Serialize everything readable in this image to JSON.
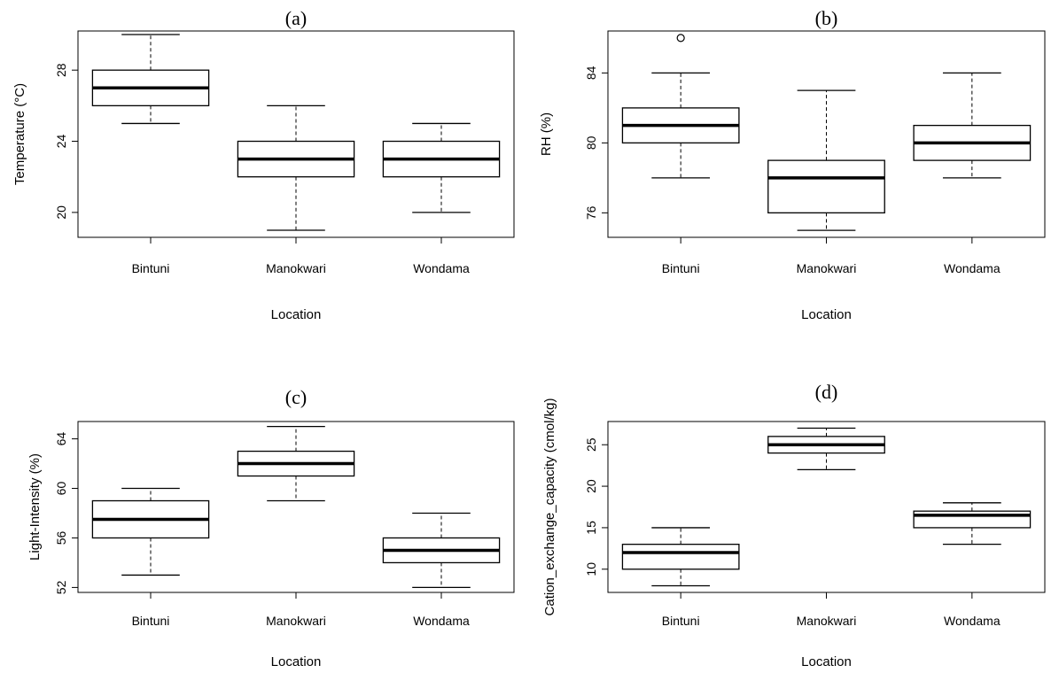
{
  "chart_data": [
    {
      "type": "box",
      "title": "(a)",
      "xlabel": "Location",
      "ylabel": "Temperature (°C)",
      "ylim": [
        18.6,
        30.2
      ],
      "yticks": [
        20,
        24,
        28
      ],
      "yticklabels": [
        "20",
        "24",
        "28"
      ],
      "categories": [
        "Bintuni",
        "Manokwari",
        "Wondama"
      ],
      "boxes": [
        {
          "whisker_low": 25,
          "q1": 26,
          "median": 27,
          "q3": 28,
          "whisker_high": 30,
          "outliers": []
        },
        {
          "whisker_low": 19,
          "q1": 22,
          "median": 23,
          "q3": 24,
          "whisker_high": 26,
          "outliers": []
        },
        {
          "whisker_low": 20,
          "q1": 22,
          "median": 23,
          "q3": 24,
          "whisker_high": 25,
          "outliers": []
        }
      ]
    },
    {
      "type": "box",
      "title": "(b)",
      "xlabel": "Location",
      "ylabel": "RH (%)",
      "ylim": [
        74.6,
        86.4
      ],
      "yticks": [
        76,
        80,
        84
      ],
      "yticklabels": [
        "76",
        "80",
        "84"
      ],
      "categories": [
        "Bintuni",
        "Manokwari",
        "Wondama"
      ],
      "boxes": [
        {
          "whisker_low": 78,
          "q1": 80,
          "median": 81,
          "q3": 82,
          "whisker_high": 84,
          "outliers": [
            86
          ]
        },
        {
          "whisker_low": 75,
          "q1": 76,
          "median": 78,
          "q3": 79,
          "whisker_high": 83,
          "outliers": []
        },
        {
          "whisker_low": 78,
          "q1": 79,
          "median": 80,
          "q3": 81,
          "whisker_high": 84,
          "outliers": []
        }
      ]
    },
    {
      "type": "box",
      "title": "(c)",
      "xlabel": "Location",
      "ylabel": "Light-Intensity (%)",
      "ylim": [
        51.6,
        65.4
      ],
      "yticks": [
        52,
        56,
        60,
        64
      ],
      "yticklabels": [
        "52",
        "56",
        "60",
        "64"
      ],
      "categories": [
        "Bintuni",
        "Manokwari",
        "Wondama"
      ],
      "boxes": [
        {
          "whisker_low": 53,
          "q1": 56,
          "median": 57.5,
          "q3": 59,
          "whisker_high": 60,
          "outliers": []
        },
        {
          "whisker_low": 59,
          "q1": 61,
          "median": 62,
          "q3": 63,
          "whisker_high": 65,
          "outliers": []
        },
        {
          "whisker_low": 52,
          "q1": 54,
          "median": 55,
          "q3": 56,
          "whisker_high": 58,
          "outliers": []
        }
      ]
    },
    {
      "type": "box",
      "title": "(d)",
      "xlabel": "Location",
      "ylabel": "Cation_exchange_capacity (cmol/kg)",
      "ylim": [
        7.2,
        27.8
      ],
      "yticks": [
        10,
        15,
        20,
        25
      ],
      "yticklabels": [
        "10",
        "15",
        "20",
        "25"
      ],
      "categories": [
        "Bintuni",
        "Manokwari",
        "Wondama"
      ],
      "boxes": [
        {
          "whisker_low": 8,
          "q1": 10,
          "median": 12,
          "q3": 13,
          "whisker_high": 15,
          "outliers": []
        },
        {
          "whisker_low": 22,
          "q1": 24,
          "median": 25,
          "q3": 26,
          "whisker_high": 27,
          "outliers": []
        },
        {
          "whisker_low": 13,
          "q1": 15,
          "median": 16.5,
          "q3": 17,
          "whisker_high": 18,
          "outliers": []
        }
      ]
    }
  ]
}
